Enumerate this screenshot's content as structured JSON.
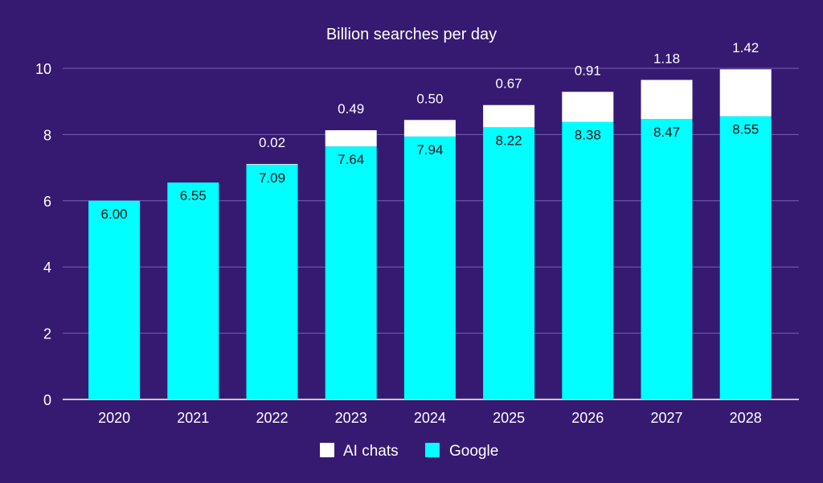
{
  "chart_data": {
    "type": "bar",
    "stacked": true,
    "title": "Billion searches per day",
    "xlabel": "",
    "ylabel": "",
    "ylim": [
      0,
      10
    ],
    "yticks": [
      "0",
      "2",
      "4",
      "6",
      "8",
      "10"
    ],
    "grid": true,
    "legend_position": "bottom",
    "categories": [
      "2020",
      "2021",
      "2022",
      "2023",
      "2024",
      "2025",
      "2026",
      "2027",
      "2028"
    ],
    "series": [
      {
        "name": "Google",
        "color": "#00ffff",
        "values": [
          6.0,
          6.55,
          7.09,
          7.64,
          7.94,
          8.22,
          8.38,
          8.47,
          8.55
        ],
        "labels": [
          "6.00",
          "6.55",
          "7.09",
          "7.64",
          "7.94",
          "8.22",
          "8.38",
          "8.47",
          "8.55"
        ]
      },
      {
        "name": "AI chats",
        "color": "#ffffff",
        "values": [
          0,
          0,
          0.02,
          0.49,
          0.5,
          0.67,
          0.91,
          1.18,
          1.42
        ],
        "labels": [
          "",
          "",
          "0.02",
          "0.49",
          "0.50",
          "0.67",
          "0.91",
          "1.18",
          "1.42"
        ]
      }
    ],
    "legend": [
      "AI chats",
      "Google"
    ],
    "colors": {
      "background": "#361a72",
      "grid": "#7a60b2",
      "text": "#ffffff",
      "inner_label": "#111111"
    }
  }
}
